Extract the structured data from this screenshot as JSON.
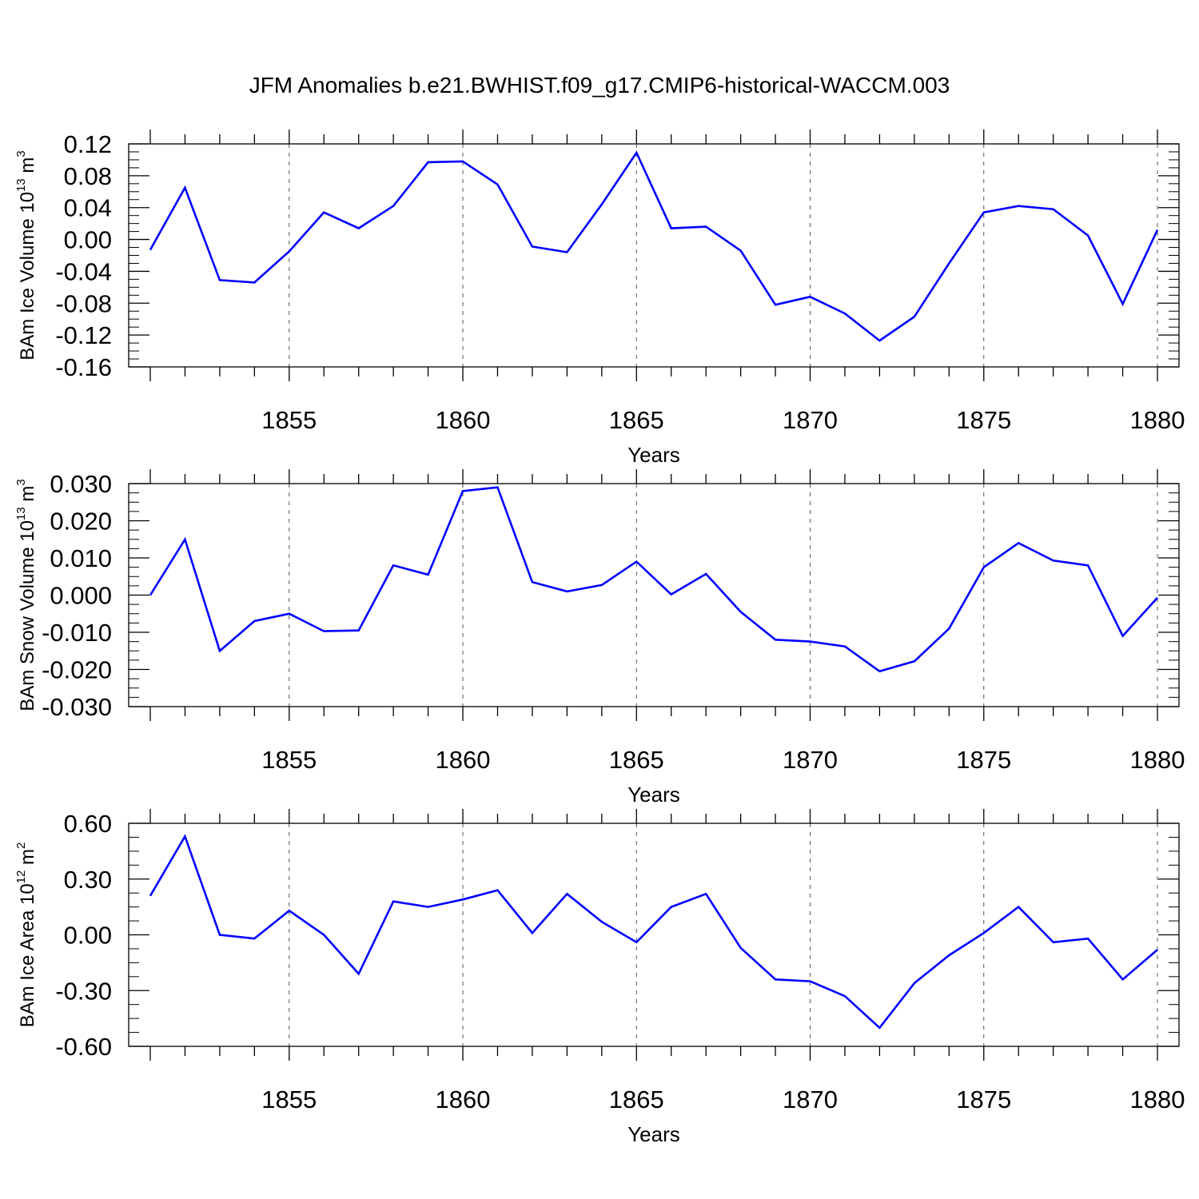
{
  "title": "JFM Anomalies b.e21.BWHIST.f09_g17.CMIP6-historical-WACCM.003",
  "colors": {
    "line": "#0000ff",
    "axis": "#000000",
    "grid": "#555555"
  },
  "chart_data": [
    {
      "type": "line",
      "xlabel": "Years",
      "ylabel": {
        "text": "BAm Ice Volume 10",
        "exp": "13",
        "unit": " m",
        "unit_exp": "3"
      },
      "x": [
        1851,
        1852,
        1853,
        1854,
        1855,
        1856,
        1857,
        1858,
        1859,
        1860,
        1861,
        1862,
        1863,
        1864,
        1865,
        1866,
        1867,
        1868,
        1869,
        1870,
        1871,
        1872,
        1873,
        1874,
        1875,
        1876,
        1877,
        1878,
        1879,
        1880
      ],
      "y": [
        -0.013,
        0.065,
        -0.051,
        -0.054,
        -0.015,
        0.034,
        0.014,
        0.042,
        0.097,
        0.098,
        0.069,
        -0.009,
        -0.016,
        0.044,
        0.109,
        0.014,
        0.016,
        -0.014,
        -0.082,
        -0.072,
        -0.093,
        -0.127,
        -0.097,
        -0.03,
        0.034,
        0.042,
        0.038,
        0.005,
        -0.081,
        0.012
      ],
      "xlim": [
        1851,
        1880
      ],
      "ylim": [
        -0.16,
        0.12
      ],
      "yticks": [
        "0.12",
        "0.08",
        "0.04",
        "0.00",
        "-0.04",
        "-0.08",
        "-0.12",
        "-0.16"
      ],
      "xticks": [
        "1855",
        "1860",
        "1865",
        "1870",
        "1875",
        "1880"
      ],
      "grid": "vertical dashed at major x ticks"
    },
    {
      "type": "line",
      "xlabel": "Years",
      "ylabel": {
        "text": "BAm Snow Volume 10",
        "exp": "13",
        "unit": " m",
        "unit_exp": "3"
      },
      "x": [
        1851,
        1852,
        1853,
        1854,
        1855,
        1856,
        1857,
        1858,
        1859,
        1860,
        1861,
        1862,
        1863,
        1864,
        1865,
        1866,
        1867,
        1868,
        1869,
        1870,
        1871,
        1872,
        1873,
        1874,
        1875,
        1876,
        1877,
        1878,
        1879,
        1880
      ],
      "y": [
        0.0,
        0.015,
        -0.015,
        -0.007,
        -0.005,
        -0.0097,
        -0.0095,
        0.008,
        0.0055,
        0.028,
        0.029,
        0.0035,
        0.001,
        0.0027,
        0.009,
        0.0002,
        0.0057,
        -0.0045,
        -0.012,
        -0.0125,
        -0.0138,
        -0.0205,
        -0.0178,
        -0.009,
        0.0075,
        0.014,
        0.0093,
        0.008,
        -0.011,
        -0.0007
      ],
      "xlim": [
        1851,
        1880
      ],
      "ylim": [
        -0.03,
        0.03
      ],
      "yticks": [
        "0.030",
        "0.020",
        "0.010",
        "0.000",
        "-0.010",
        "-0.020",
        "-0.030"
      ],
      "xticks": [
        "1855",
        "1860",
        "1865",
        "1870",
        "1875",
        "1880"
      ],
      "grid": "vertical dashed at major x ticks"
    },
    {
      "type": "line",
      "xlabel": "Years",
      "ylabel": {
        "text": "BAm Ice Area 10",
        "exp": "12",
        "unit": " m",
        "unit_exp": "2"
      },
      "x": [
        1851,
        1852,
        1853,
        1854,
        1855,
        1856,
        1857,
        1858,
        1859,
        1860,
        1861,
        1862,
        1863,
        1864,
        1865,
        1866,
        1867,
        1868,
        1869,
        1870,
        1871,
        1872,
        1873,
        1874,
        1875,
        1876,
        1877,
        1878,
        1879,
        1880
      ],
      "y": [
        0.21,
        0.53,
        0.0,
        -0.02,
        0.13,
        0.0,
        -0.21,
        0.18,
        0.15,
        0.19,
        0.24,
        0.01,
        0.22,
        0.07,
        -0.04,
        0.15,
        0.22,
        -0.07,
        -0.24,
        -0.25,
        -0.33,
        -0.5,
        -0.26,
        -0.11,
        0.01,
        0.15,
        -0.04,
        -0.02,
        -0.24,
        -0.08
      ],
      "xlim": [
        1851,
        1880
      ],
      "ylim": [
        -0.6,
        0.6
      ],
      "yticks": [
        "0.60",
        "0.30",
        "0.00",
        "-0.30",
        "-0.60"
      ],
      "xticks": [
        "1855",
        "1860",
        "1865",
        "1870",
        "1875",
        "1880"
      ],
      "grid": "vertical dashed at major x ticks"
    }
  ]
}
